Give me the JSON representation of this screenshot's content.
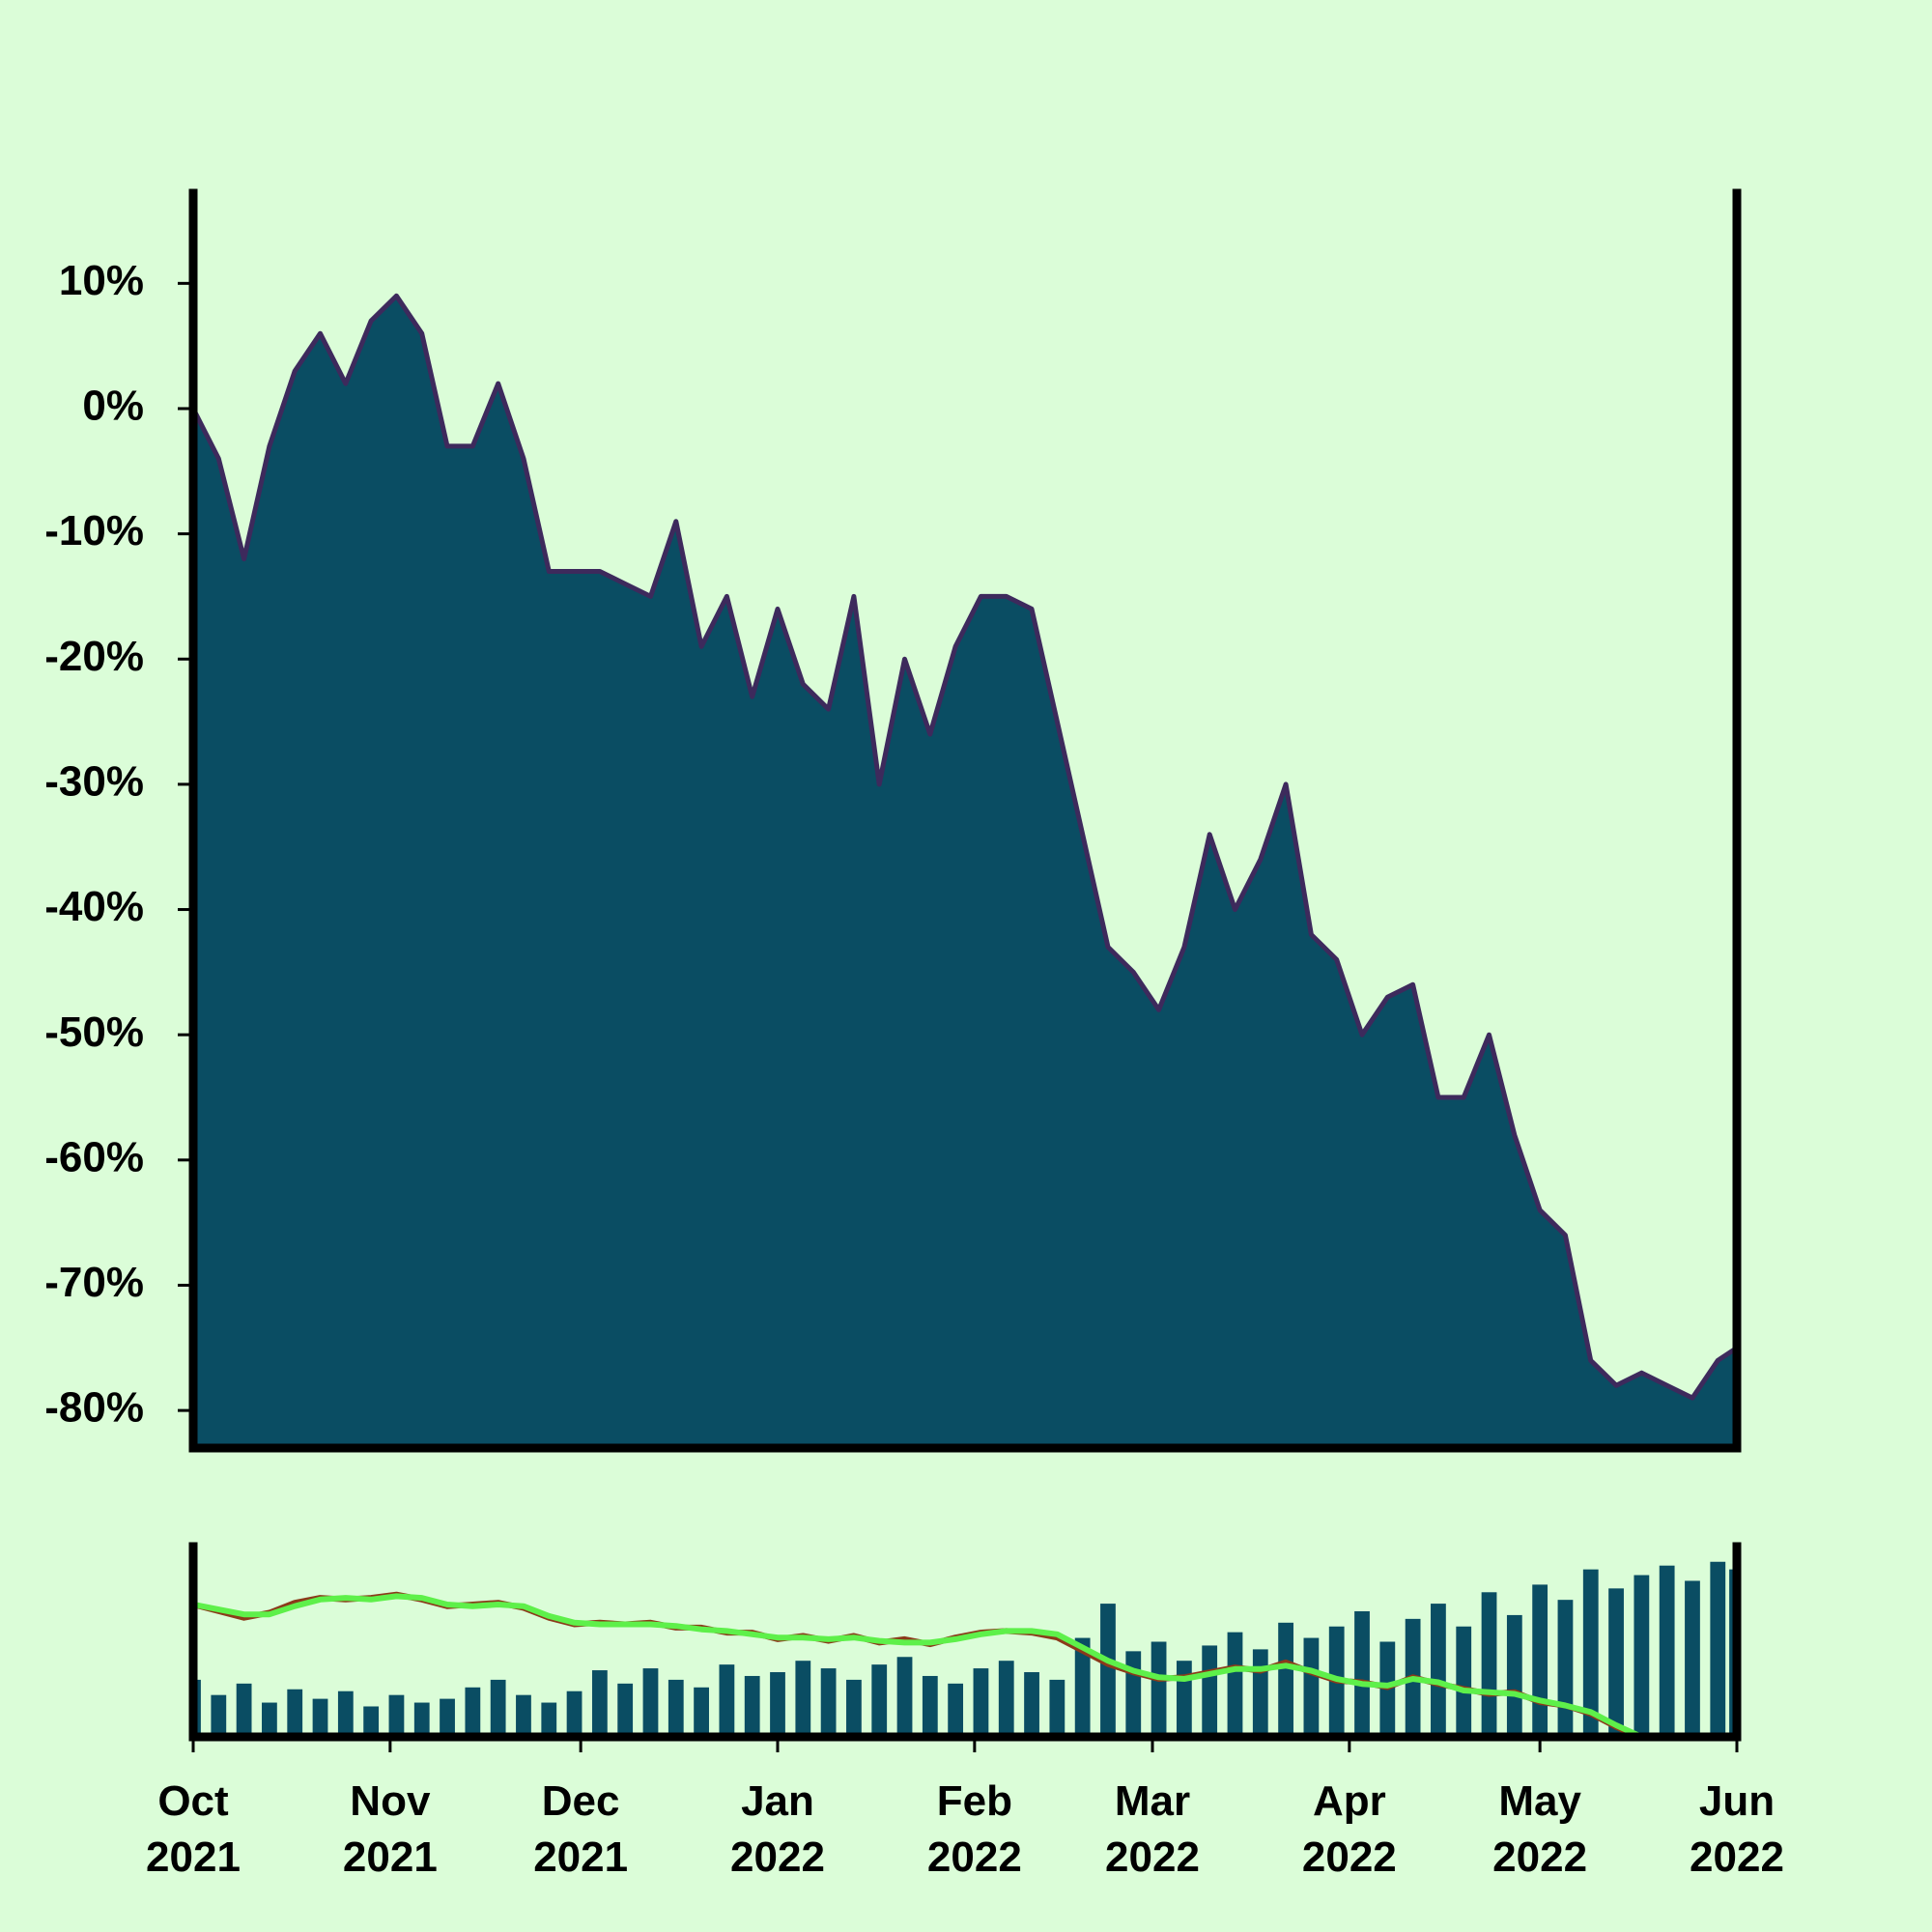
{
  "chart_data": [
    {
      "type": "area",
      "x": [
        "2021-10-01",
        "2021-10-05",
        "2021-10-09",
        "2021-10-13",
        "2021-10-17",
        "2021-10-21",
        "2021-10-25",
        "2021-10-29",
        "2021-11-02",
        "2021-11-06",
        "2021-11-10",
        "2021-11-14",
        "2021-11-18",
        "2021-11-22",
        "2021-11-26",
        "2021-11-30",
        "2021-12-04",
        "2021-12-08",
        "2021-12-12",
        "2021-12-16",
        "2021-12-20",
        "2021-12-24",
        "2021-12-28",
        "2022-01-01",
        "2022-01-05",
        "2022-01-09",
        "2022-01-13",
        "2022-01-17",
        "2022-01-21",
        "2022-01-25",
        "2022-01-29",
        "2022-02-02",
        "2022-02-06",
        "2022-02-10",
        "2022-02-14",
        "2022-02-18",
        "2022-02-22",
        "2022-02-26",
        "2022-03-02",
        "2022-03-06",
        "2022-03-10",
        "2022-03-14",
        "2022-03-18",
        "2022-03-22",
        "2022-03-26",
        "2022-03-30",
        "2022-04-03",
        "2022-04-07",
        "2022-04-11",
        "2022-04-15",
        "2022-04-19",
        "2022-04-23",
        "2022-04-27",
        "2022-05-01",
        "2022-05-05",
        "2022-05-09",
        "2022-05-13",
        "2022-05-17",
        "2022-05-21",
        "2022-05-25",
        "2022-05-29",
        "2022-06-01"
      ],
      "series": [
        {
          "color": "#0a4d63",
          "line_color": "#3d2a5c",
          "values": [
            0,
            -4,
            -12,
            -3,
            3,
            6,
            2,
            7,
            9,
            6,
            -3,
            -3,
            2,
            -4,
            -13,
            -13,
            -13,
            -14,
            -15,
            -9,
            -19,
            -15,
            -23,
            -16,
            -22,
            -24,
            -15,
            -30,
            -20,
            -26,
            -19,
            -15,
            -15,
            -16,
            -25,
            -34,
            -43,
            -45,
            -48,
            -43,
            -34,
            -40,
            -36,
            -30,
            -42,
            -44,
            -50,
            -47,
            -46,
            -55,
            -55,
            -50,
            -58,
            -64,
            -66,
            -76,
            -78,
            -77,
            -78,
            -79,
            -76,
            -75
          ]
        }
      ],
      "ylim": [
        -83,
        17.2
      ],
      "yticks": [
        {
          "value": 10,
          "label": "10%"
        },
        {
          "value": 0,
          "label": "0%"
        },
        {
          "value": -10,
          "label": "-10%"
        },
        {
          "value": -20,
          "label": "-20%"
        },
        {
          "value": -30,
          "label": "-30%"
        },
        {
          "value": -40,
          "label": "-40%"
        },
        {
          "value": -50,
          "label": "-50%"
        },
        {
          "value": -60,
          "label": "-60%"
        },
        {
          "value": -70,
          "label": "-70%"
        },
        {
          "value": -80,
          "label": "-80%"
        }
      ],
      "xlim": [
        "2021-10-01",
        "2022-06-01"
      ],
      "xticks": [
        {
          "value": "2021-10-01",
          "label": "Oct 2021"
        },
        {
          "value": "2021-11-01",
          "label": "Nov 2021"
        },
        {
          "value": "2021-12-01",
          "label": "Dec 2021"
        },
        {
          "value": "2022-01-01",
          "label": "Jan 2022"
        },
        {
          "value": "2022-02-01",
          "label": "Feb 2022"
        },
        {
          "value": "2022-03-01",
          "label": "Mar 2022"
        },
        {
          "value": "2022-04-01",
          "label": "Apr 2022"
        },
        {
          "value": "2022-05-01",
          "label": "May 2022"
        },
        {
          "value": "2022-06-01",
          "label": "Jun 2022"
        }
      ]
    },
    {
      "type": "volume",
      "ylim": [
        0,
        100
      ],
      "y2lim": [
        -80,
        35
      ],
      "series": [
        {
          "type": "bar",
          "color": "#0a4d63",
          "values": [
            30,
            22,
            28,
            18,
            25,
            20,
            24,
            16,
            22,
            18,
            20,
            26,
            30,
            22,
            18,
            24,
            35,
            28,
            36,
            30,
            26,
            38,
            32,
            34,
            40,
            36,
            30,
            38,
            42,
            32,
            28,
            36,
            40,
            34,
            30,
            52,
            70,
            45,
            50,
            40,
            48,
            55,
            46,
            60,
            52,
            58,
            66,
            50,
            62,
            70,
            58,
            76,
            64,
            80,
            72,
            88,
            78,
            85,
            90,
            82,
            92,
            88
          ]
        },
        {
          "type": "line",
          "axis": "y2",
          "color": "#8b3a1a",
          "values": [
            0,
            -4,
            -8,
            -5,
            1,
            4,
            3,
            4,
            6,
            3,
            -1,
            0,
            1,
            -2,
            -8,
            -12,
            -11,
            -12,
            -11,
            -14,
            -14,
            -17,
            -17,
            -21,
            -19,
            -22,
            -19,
            -23,
            -21,
            -24,
            -20,
            -17,
            -16,
            -17,
            -20,
            -28,
            -36,
            -41,
            -45,
            -44,
            -41,
            -38,
            -40,
            -35,
            -41,
            -46,
            -47,
            -50,
            -44,
            -48,
            -51,
            -54,
            -53,
            -59,
            -61,
            -66,
            -74,
            -81,
            -80,
            -84,
            -82,
            -82
          ]
        },
        {
          "type": "line",
          "axis": "y2",
          "color": "#5ef04a",
          "values": [
            0,
            -3,
            -6,
            -6,
            -1,
            3,
            4,
            3,
            5,
            4,
            0,
            -1,
            0,
            -1,
            -7,
            -11,
            -12,
            -12,
            -12,
            -13,
            -15,
            -16,
            -18,
            -20,
            -20,
            -21,
            -20,
            -22,
            -23,
            -23,
            -21,
            -18,
            -16,
            -16,
            -18,
            -26,
            -34,
            -40,
            -44,
            -45,
            -42,
            -39,
            -39,
            -37,
            -40,
            -45,
            -48,
            -49,
            -45,
            -47,
            -52,
            -53,
            -54,
            -58,
            -61,
            -65,
            -73,
            -80,
            -82,
            -83,
            -83,
            -83
          ]
        }
      ]
    }
  ]
}
